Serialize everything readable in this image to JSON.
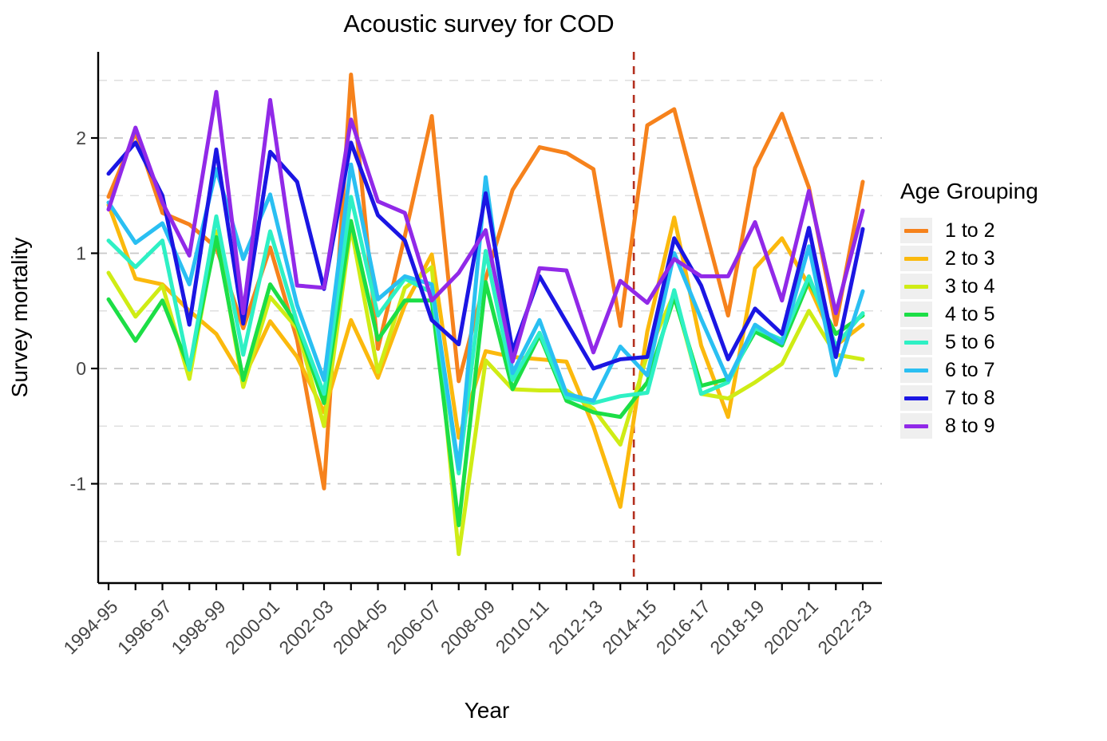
{
  "chart_data": {
    "type": "line",
    "title": "Acoustic survey for COD",
    "xlabel": "Year",
    "ylabel": "Survey mortality",
    "legend_title": "Age Grouping",
    "legend_position": "right",
    "grid": "dashed gray major and minor horizontal gridlines",
    "ylim": [
      -1.85,
      2.75
    ],
    "yticks": [
      2,
      1,
      0,
      -1
    ],
    "x": [
      "1994-95",
      "1995-96",
      "1996-97",
      "1997-98",
      "1998-99",
      "1999-00",
      "2000-01",
      "2001-02",
      "2002-03",
      "2003-04",
      "2004-05",
      "2005-06",
      "2006-07",
      "2007-08",
      "2008-09",
      "2009-10",
      "2010-11",
      "2011-12",
      "2012-13",
      "2013-14",
      "2014-15",
      "2015-16",
      "2016-17",
      "2017-18",
      "2018-19",
      "2019-20",
      "2020-21",
      "2021-22",
      "2022-23"
    ],
    "x_tick_labels_shown": [
      "1994-95",
      "1996-97",
      "1998-99",
      "2000-01",
      "2002-03",
      "2004-05",
      "2006-07",
      "2008-09",
      "2010-11",
      "2012-13",
      "2014-15",
      "2016-17",
      "2018-19",
      "2020-21",
      "2022-23"
    ],
    "reference_line": {
      "orientation": "vertical",
      "x_between": [
        "2013-14",
        "2014-15"
      ],
      "x_index": 19.5,
      "style": "dashed",
      "color": "#B3301F"
    },
    "series": [
      {
        "name": "1 to 2",
        "color": "#F6821C",
        "values": [
          1.49,
          2.05,
          1.35,
          1.25,
          1.05,
          0.35,
          1.05,
          0.25,
          -1.04,
          2.55,
          0.17,
          1.15,
          2.19,
          -0.11,
          0.78,
          1.55,
          1.92,
          1.87,
          1.73,
          0.37,
          2.11,
          2.25,
          1.35,
          0.46,
          1.74,
          2.21,
          1.57,
          0.38,
          1.62
        ]
      },
      {
        "name": "2 to 3",
        "color": "#FBB90D",
        "values": [
          1.42,
          0.78,
          0.73,
          0.5,
          0.3,
          -0.09,
          0.41,
          0.1,
          -0.38,
          0.42,
          -0.08,
          0.55,
          0.99,
          -0.6,
          0.15,
          0.1,
          0.08,
          0.06,
          -0.5,
          -1.2,
          0.32,
          1.31,
          0.2,
          -0.42,
          0.87,
          1.13,
          0.72,
          0.2,
          0.38
        ]
      },
      {
        "name": "3 to 4",
        "color": "#CFEC15",
        "values": [
          0.83,
          0.45,
          0.72,
          -0.09,
          1.19,
          -0.16,
          0.62,
          0.35,
          -0.5,
          1.23,
          -0.03,
          0.7,
          0.88,
          -1.61,
          0.07,
          -0.18,
          -0.19,
          -0.19,
          -0.35,
          -0.66,
          0.12,
          0.65,
          -0.22,
          -0.26,
          -0.12,
          0.04,
          0.5,
          0.12,
          0.08
        ]
      },
      {
        "name": "4 to 5",
        "color": "#1CDE46",
        "values": [
          0.6,
          0.24,
          0.59,
          0.0,
          1.14,
          -0.1,
          0.73,
          0.38,
          -0.3,
          1.28,
          0.25,
          0.59,
          0.59,
          -1.36,
          0.75,
          -0.18,
          0.29,
          -0.28,
          -0.38,
          -0.42,
          -0.12,
          0.62,
          -0.15,
          -0.09,
          0.32,
          0.2,
          0.76,
          0.3,
          0.46
        ]
      },
      {
        "name": "5 to 6",
        "color": "#2EF0C4",
        "values": [
          1.11,
          0.88,
          1.11,
          -0.01,
          1.32,
          0.12,
          1.19,
          0.4,
          -0.22,
          1.49,
          0.46,
          0.78,
          0.66,
          -0.91,
          1.02,
          -0.1,
          0.31,
          -0.25,
          -0.3,
          -0.24,
          -0.21,
          0.68,
          -0.22,
          -0.12,
          0.35,
          0.25,
          0.8,
          0.2,
          0.48
        ]
      },
      {
        "name": "6 to 7",
        "color": "#2ABFF2",
        "values": [
          1.44,
          1.09,
          1.26,
          0.73,
          1.73,
          0.95,
          1.51,
          0.55,
          -0.1,
          1.77,
          0.6,
          0.8,
          0.73,
          -0.87,
          1.66,
          -0.04,
          0.42,
          -0.22,
          -0.28,
          0.19,
          -0.06,
          1.0,
          0.43,
          -0.1,
          0.38,
          0.22,
          1.06,
          -0.06,
          0.67
        ]
      },
      {
        "name": "7 to 8",
        "color": "#1B16E3",
        "values": [
          1.69,
          1.96,
          1.5,
          0.38,
          1.9,
          0.39,
          1.88,
          1.62,
          0.69,
          1.96,
          1.33,
          1.11,
          0.42,
          0.21,
          1.52,
          0.15,
          0.8,
          0.4,
          0.0,
          0.08,
          0.1,
          1.13,
          0.72,
          0.08,
          0.52,
          0.3,
          1.22,
          0.1,
          1.21
        ]
      },
      {
        "name": "8 to 9",
        "color": "#9129E8",
        "values": [
          1.38,
          2.09,
          1.44,
          0.98,
          2.4,
          0.48,
          2.33,
          0.72,
          0.7,
          2.16,
          1.45,
          1.35,
          0.59,
          0.83,
          1.2,
          0.06,
          0.87,
          0.85,
          0.14,
          0.76,
          0.57,
          0.95,
          0.8,
          0.8,
          1.27,
          0.59,
          1.54,
          0.48,
          1.37
        ]
      }
    ],
    "style": {
      "background": "#ffffff",
      "major_grid_color": "#C7C7C7",
      "minor_grid_color": "#DFDFDF",
      "axis_color": "#000000",
      "tick_label_color": "#454545",
      "legend_key_background": "#EFEFEF"
    }
  }
}
